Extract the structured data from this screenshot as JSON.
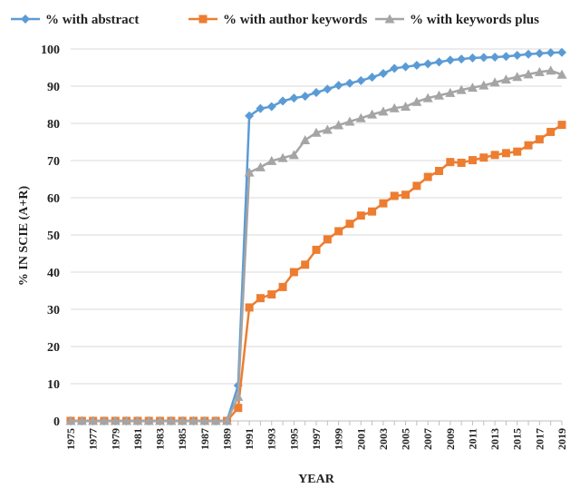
{
  "chart_data": {
    "type": "line",
    "title": "",
    "xlabel": "YEAR",
    "ylabel": "% IN SCIE (A+R)",
    "ylim": [
      0,
      100
    ],
    "yticks": [
      0,
      10,
      20,
      30,
      40,
      50,
      60,
      70,
      80,
      90,
      100
    ],
    "x": [
      1975,
      1976,
      1977,
      1978,
      1979,
      1980,
      1981,
      1982,
      1983,
      1984,
      1985,
      1986,
      1987,
      1988,
      1989,
      1990,
      1991,
      1992,
      1993,
      1994,
      1995,
      1996,
      1997,
      1998,
      1999,
      2000,
      2001,
      2002,
      2003,
      2004,
      2005,
      2006,
      2007,
      2008,
      2009,
      2010,
      2011,
      2012,
      2013,
      2014,
      2015,
      2016,
      2017,
      2018,
      2019
    ],
    "xtick_labels": [
      "1975",
      "1977",
      "1979",
      "1981",
      "1983",
      "1985",
      "1987",
      "1989",
      "1991",
      "1993",
      "1995",
      "1997",
      "1999",
      "2001",
      "2003",
      "2005",
      "2007",
      "2009",
      "2011",
      "2013",
      "2015",
      "2017",
      "2019"
    ],
    "grid": true,
    "legend_position": "top",
    "series": [
      {
        "name": "% with abstract",
        "color": "#5B9BD5",
        "marker": "diamond",
        "values": [
          0,
          0,
          0,
          0,
          0,
          0,
          0,
          0,
          0,
          0,
          0,
          0,
          0,
          0,
          0,
          9.5,
          82,
          84,
          84.5,
          86,
          86.8,
          87.3,
          88.3,
          89.2,
          90.2,
          90.8,
          91.5,
          92.4,
          93.4,
          94.8,
          95.2,
          95.6,
          96,
          96.5,
          97,
          97.3,
          97.6,
          97.7,
          97.8,
          98,
          98.3,
          98.6,
          98.8,
          99,
          99.1
        ]
      },
      {
        "name": "% with author keywords",
        "color": "#ED7D31",
        "marker": "square",
        "values": [
          0,
          0,
          0,
          0,
          0,
          0,
          0,
          0,
          0,
          0,
          0,
          0,
          0,
          0,
          0,
          3.5,
          30.5,
          33,
          34,
          36,
          40,
          42,
          46,
          48.8,
          51,
          53,
          55.2,
          56.3,
          58.5,
          60.5,
          60.8,
          63.2,
          65.6,
          67.2,
          69.6,
          69.4,
          70.1,
          70.8,
          71.5,
          72,
          72.4,
          74.1,
          75.7,
          77.7,
          79.6
        ]
      },
      {
        "name": "% with keywords plus",
        "color": "#A5A5A5",
        "marker": "triangle",
        "values": [
          0,
          0,
          0,
          0,
          0,
          0,
          0,
          0,
          0,
          0,
          0,
          0,
          0,
          0,
          0,
          6.5,
          66.8,
          68.2,
          69.9,
          70.7,
          71.5,
          75.5,
          77.5,
          78.3,
          79.5,
          80.5,
          81.4,
          82.4,
          83.2,
          84.1,
          84.5,
          85.8,
          86.8,
          87.5,
          88.2,
          89,
          89.6,
          90.2,
          91,
          91.8,
          92.5,
          93.2,
          93.8,
          94.2,
          93.1
        ]
      }
    ]
  }
}
